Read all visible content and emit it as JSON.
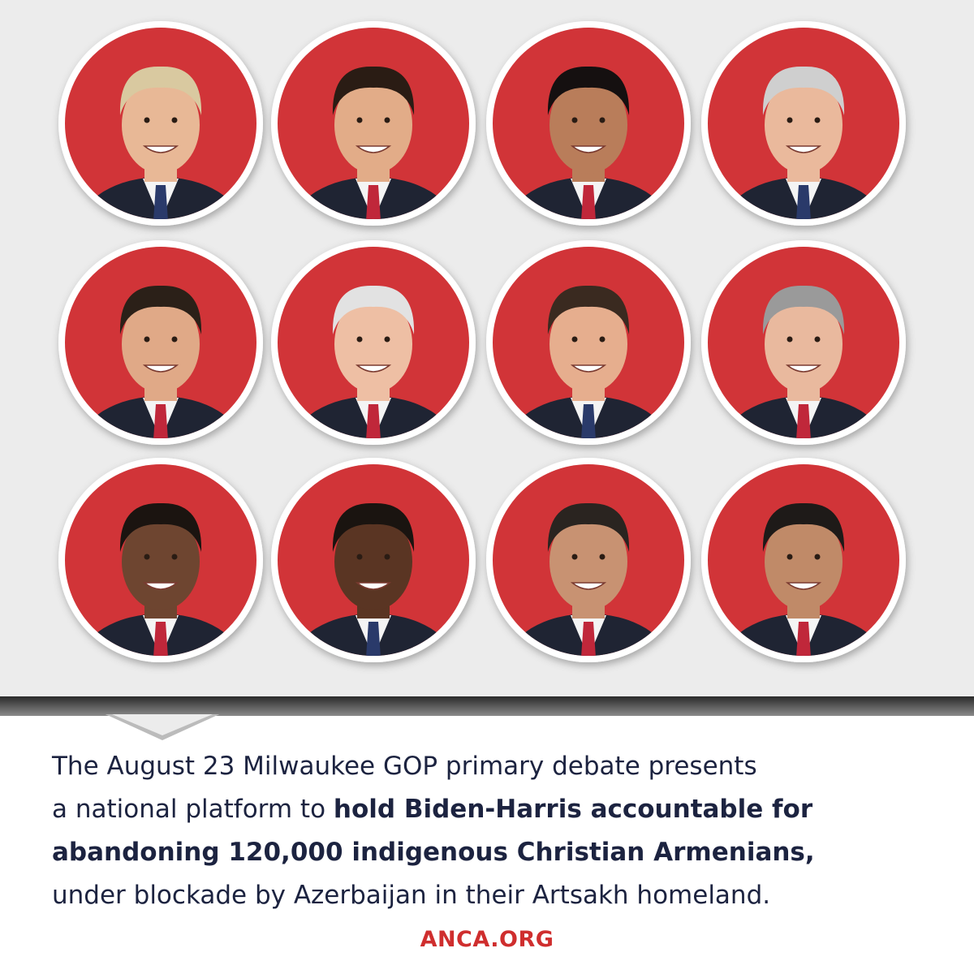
{
  "caption": [
    [
      {
        "text": "The August 23 Milwaukee GOP primary debate presents",
        "bold": false
      }
    ],
    [
      {
        "text": "a national platform to ",
        "bold": false
      },
      {
        "text": "hold Biden-Harris accountable for",
        "bold": true
      }
    ],
    [
      {
        "text": "abandoning 120,000 indigenous Christian Armenians,",
        "bold": true
      }
    ],
    [
      {
        "text": "under blockade by Azerbaijan in their Artsakh homeland.",
        "bold": false
      }
    ]
  ],
  "footer": "ANCA.ORG"
}
